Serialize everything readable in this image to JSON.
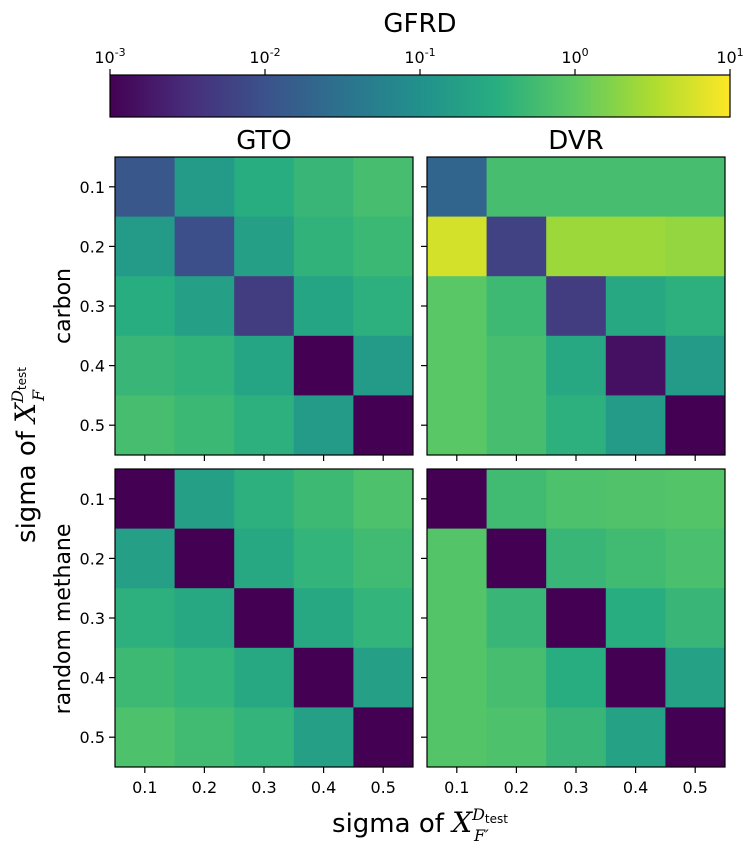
{
  "colorbar": {
    "title": "GFRD",
    "scale": "log",
    "range": [
      0.001,
      10
    ],
    "ticks": [
      {
        "base": "10",
        "exp": "-3"
      },
      {
        "base": "10",
        "exp": "-2"
      },
      {
        "base": "10",
        "exp": "-1"
      },
      {
        "base": "10",
        "exp": "0"
      },
      {
        "base": "10",
        "exp": "1"
      }
    ]
  },
  "labels": {
    "ylabel_prefix": "sigma of ",
    "ylabel_var": "X",
    "ylabel_sub": "F",
    "ylabel_sup": "D",
    "ylabel_sup_sub": "test",
    "xlabel_prefix": "sigma of ",
    "xlabel_var": "X",
    "xlabel_sub": "F′",
    "xlabel_sup": "D",
    "xlabel_sup_sub": "test",
    "row_labels": [
      "carbon",
      "random methane"
    ],
    "col_titles": [
      "GTO",
      "DVR"
    ]
  },
  "chart_data": [
    {
      "type": "heatmap",
      "title": "GTO",
      "row_group": "carbon",
      "x": [
        "0.1",
        "0.2",
        "0.3",
        "0.4",
        "0.5"
      ],
      "y": [
        "0.1",
        "0.2",
        "0.3",
        "0.4",
        "0.5"
      ],
      "values": [
        [
          0.012,
          0.15,
          0.3,
          0.45,
          0.6
        ],
        [
          0.15,
          0.009,
          0.18,
          0.38,
          0.48
        ],
        [
          0.3,
          0.18,
          0.005,
          0.22,
          0.35
        ],
        [
          0.45,
          0.38,
          0.22,
          0.001,
          0.15
        ],
        [
          0.6,
          0.48,
          0.35,
          0.15,
          0.001
        ]
      ]
    },
    {
      "type": "heatmap",
      "title": "DVR",
      "row_group": "carbon",
      "x": [
        "0.1",
        "0.2",
        "0.3",
        "0.4",
        "0.5"
      ],
      "y": [
        "0.1",
        "0.2",
        "0.3",
        "0.4",
        "0.5"
      ],
      "values": [
        [
          0.02,
          0.6,
          0.6,
          0.6,
          0.6
        ],
        [
          5.5,
          0.006,
          2.5,
          2.5,
          2.2
        ],
        [
          0.9,
          0.5,
          0.005,
          0.25,
          0.35
        ],
        [
          0.9,
          0.6,
          0.25,
          0.0015,
          0.15
        ],
        [
          0.9,
          0.6,
          0.35,
          0.15,
          0.001
        ]
      ]
    },
    {
      "type": "heatmap",
      "title": "GTO",
      "row_group": "random methane",
      "x": [
        "0.1",
        "0.2",
        "0.3",
        "0.4",
        "0.5"
      ],
      "y": [
        "0.1",
        "0.2",
        "0.3",
        "0.4",
        "0.5"
      ],
      "values": [
        [
          0.001,
          0.18,
          0.35,
          0.5,
          0.7
        ],
        [
          0.18,
          0.001,
          0.25,
          0.4,
          0.55
        ],
        [
          0.35,
          0.25,
          0.001,
          0.25,
          0.4
        ],
        [
          0.5,
          0.4,
          0.25,
          0.001,
          0.18
        ],
        [
          0.7,
          0.55,
          0.4,
          0.18,
          0.001
        ]
      ]
    },
    {
      "type": "heatmap",
      "title": "DVR",
      "row_group": "random methane",
      "x": [
        "0.1",
        "0.2",
        "0.3",
        "0.4",
        "0.5"
      ],
      "y": [
        "0.1",
        "0.2",
        "0.3",
        "0.4",
        "0.5"
      ],
      "values": [
        [
          0.001,
          0.55,
          0.7,
          0.75,
          0.8
        ],
        [
          0.8,
          0.001,
          0.45,
          0.55,
          0.65
        ],
        [
          0.8,
          0.45,
          0.001,
          0.3,
          0.45
        ],
        [
          0.8,
          0.6,
          0.3,
          0.001,
          0.2
        ],
        [
          0.8,
          0.7,
          0.45,
          0.2,
          0.001
        ]
      ]
    }
  ]
}
